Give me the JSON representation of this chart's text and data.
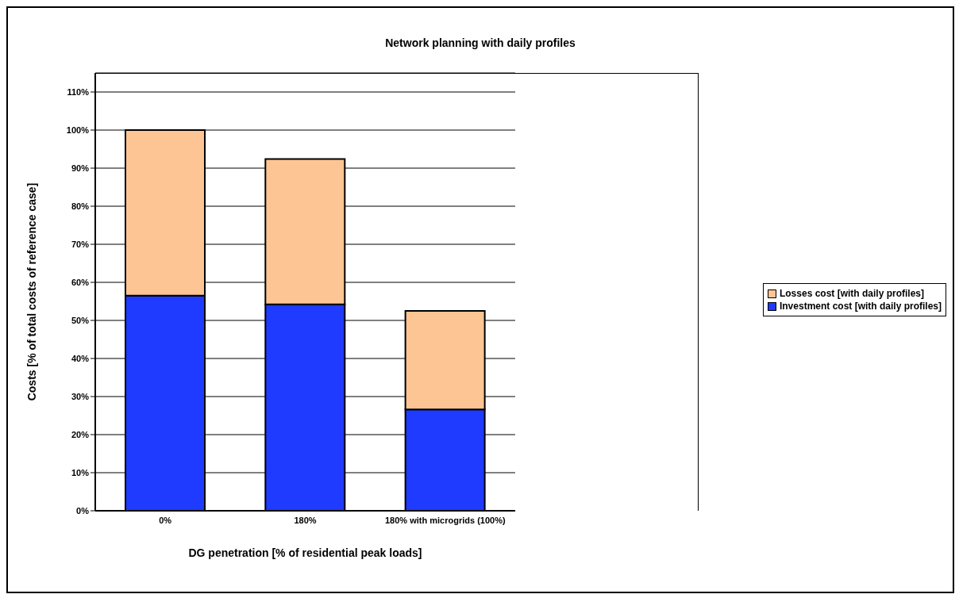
{
  "chart_data": {
    "type": "bar",
    "title": "Network planning with daily profiles",
    "xlabel": "DG penetration [% of residential peak loads]",
    "ylabel": "Costs [% of total costs of reference case]",
    "categories": [
      "0%",
      "180%",
      "180% with microgrids (100%)"
    ],
    "stacked": true,
    "series": [
      {
        "name": "Investment cost [with daily profiles]",
        "color": "#1f3bff",
        "values": [
          56.5,
          54.2,
          26.6
        ]
      },
      {
        "name": "Losses cost [with daily profiles]",
        "color": "#fdc593",
        "values": [
          43.5,
          38.2,
          25.9
        ]
      }
    ],
    "ylim": [
      0,
      115
    ],
    "yticks": [
      {
        "value": 0,
        "label": "0%"
      },
      {
        "value": 10,
        "label": "10%"
      },
      {
        "value": 20,
        "label": "20%"
      },
      {
        "value": 30,
        "label": "30%"
      },
      {
        "value": 40,
        "label": "40%"
      },
      {
        "value": 50,
        "label": "50%"
      },
      {
        "value": 60,
        "label": "60%"
      },
      {
        "value": 70,
        "label": "70%"
      },
      {
        "value": 80,
        "label": "80%"
      },
      {
        "value": 90,
        "label": "90%"
      },
      {
        "value": 100,
        "label": "100%"
      },
      {
        "value": 110,
        "label": "110%"
      }
    ],
    "grid": "y",
    "legend": "right"
  }
}
